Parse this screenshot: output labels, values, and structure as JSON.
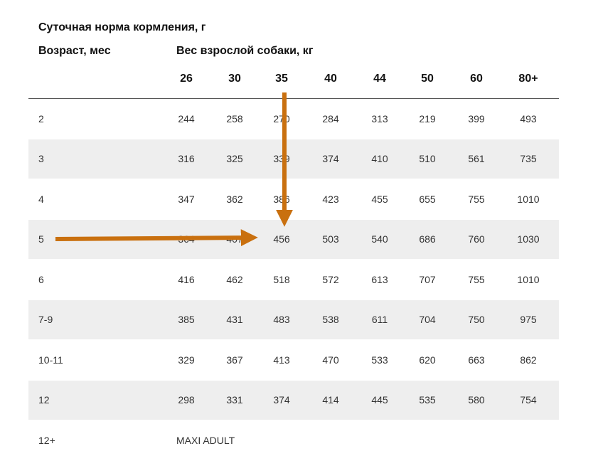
{
  "title": "Суточная норма кормления, г",
  "age_header": "Возраст, мес",
  "weight_header": "Вес взрослой собаки, кг",
  "weights": [
    "26",
    "30",
    "35",
    "40",
    "44",
    "50",
    "60",
    "80+"
  ],
  "rows": [
    {
      "age": "2",
      "values": [
        "244",
        "258",
        "270",
        "284",
        "313",
        "219",
        "399",
        "493"
      ]
    },
    {
      "age": "3",
      "values": [
        "316",
        "325",
        "339",
        "374",
        "410",
        "510",
        "561",
        "735"
      ]
    },
    {
      "age": "4",
      "values": [
        "347",
        "362",
        "386",
        "423",
        "455",
        "655",
        "755",
        "1010"
      ]
    },
    {
      "age": "5",
      "values": [
        "364",
        "407",
        "456",
        "503",
        "540",
        "686",
        "760",
        "1030"
      ]
    },
    {
      "age": "6",
      "values": [
        "416",
        "462",
        "518",
        "572",
        "613",
        "707",
        "755",
        "1010"
      ]
    },
    {
      "age": "7-9",
      "values": [
        "385",
        "431",
        "483",
        "538",
        "611",
        "704",
        "750",
        "975"
      ]
    },
    {
      "age": "10-11",
      "values": [
        "329",
        "367",
        "413",
        "470",
        "533",
        "620",
        "663",
        "862"
      ]
    },
    {
      "age": "12",
      "values": [
        "298",
        "331",
        "374",
        "414",
        "445",
        "535",
        "580",
        "754"
      ]
    },
    {
      "age": "12+",
      "note": "MAXI ADULT"
    }
  ],
  "colors": {
    "shade": "#eeeeee",
    "arrow": "#c9700f",
    "text": "#333333"
  }
}
